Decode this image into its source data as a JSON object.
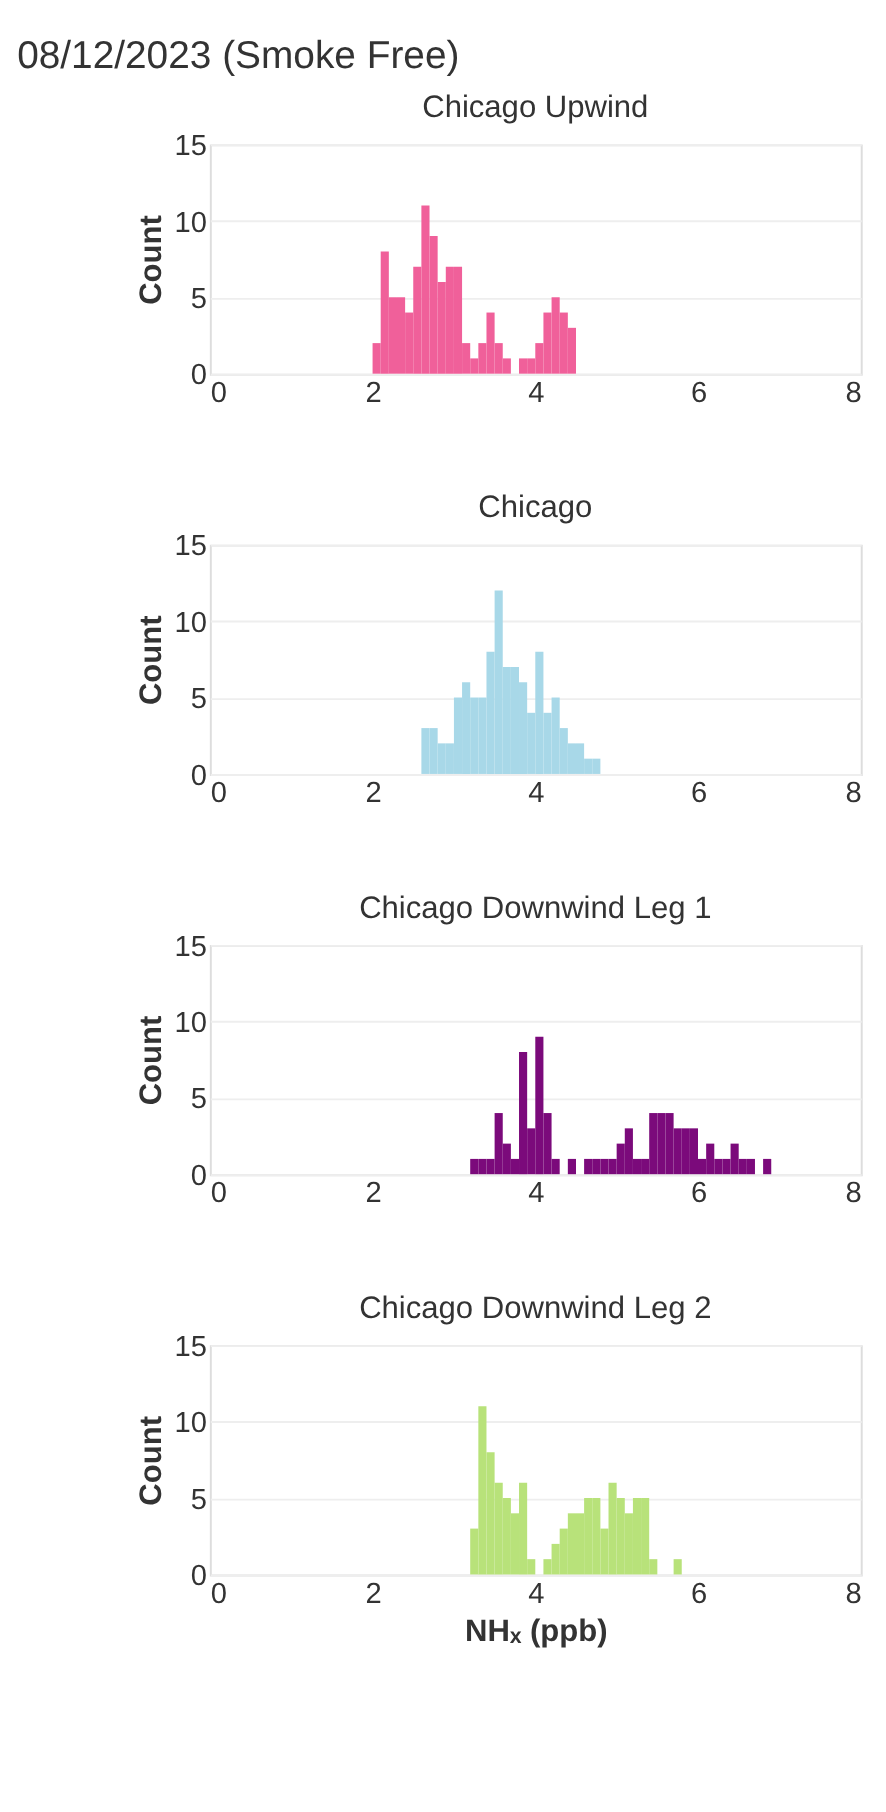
{
  "chart_data": [
    {
      "type": "histogram",
      "title": "Chicago Upwind",
      "ylabel": "Count",
      "annotations": [
        "08/12/2023 (Smoke Free)"
      ],
      "color": "#f0609a",
      "bins": [
        2.0,
        2.1,
        2.2,
        2.3,
        2.4,
        2.5,
        2.6,
        2.7,
        2.8,
        2.9,
        3.0,
        3.1,
        3.2,
        3.3,
        3.4,
        3.5,
        3.6,
        3.7,
        3.8,
        3.9,
        4.0,
        4.1,
        4.2,
        4.3,
        4.4,
        4.5
      ],
      "values": [
        2,
        8,
        5,
        5,
        4,
        7,
        11,
        9,
        6,
        7,
        7,
        2,
        1,
        2,
        4,
        2,
        1,
        0,
        1,
        1,
        2,
        4,
        5,
        4,
        3
      ],
      "xlim": [
        0,
        8
      ],
      "xticks": [
        0,
        2,
        4,
        6,
        8
      ],
      "ylim": [
        0,
        15
      ],
      "yticks": [
        0,
        5,
        10,
        15
      ],
      "grid": "y"
    },
    {
      "type": "histogram",
      "title": "Chicago",
      "ylabel": "Count",
      "color": "#a8d8e8",
      "bins": [
        2.6,
        2.7,
        2.8,
        2.9,
        3.0,
        3.1,
        3.2,
        3.3,
        3.4,
        3.5,
        3.6,
        3.7,
        3.8,
        3.9,
        4.0,
        4.1,
        4.2,
        4.3,
        4.4,
        4.5,
        4.6,
        4.7,
        4.8
      ],
      "values": [
        3,
        3,
        2,
        2,
        5,
        6,
        5,
        5,
        8,
        12,
        7,
        7,
        6,
        4,
        8,
        4,
        5,
        3,
        2,
        2,
        1,
        1
      ],
      "xlim": [
        0,
        8
      ],
      "xticks": [
        0,
        2,
        4,
        6,
        8
      ],
      "ylim": [
        0,
        15
      ],
      "yticks": [
        0,
        5,
        10,
        15
      ],
      "grid": "y"
    },
    {
      "type": "histogram",
      "title": "Chicago Downwind Leg 1",
      "ylabel": "Count",
      "color": "#7b0a7b",
      "bins": [
        3.2,
        3.3,
        3.4,
        3.5,
        3.6,
        3.7,
        3.8,
        3.9,
        4.0,
        4.1,
        4.2,
        4.3,
        4.4,
        4.5,
        4.6,
        4.7,
        4.8,
        4.9,
        5.0,
        5.1,
        5.2,
        5.3,
        5.4,
        5.5,
        5.6,
        5.7,
        5.8,
        5.9,
        6.0,
        6.1,
        6.2,
        6.3,
        6.4,
        6.5,
        6.6,
        6.7,
        6.8,
        6.9
      ],
      "values": [
        1,
        1,
        1,
        4,
        2,
        1,
        8,
        3,
        9,
        4,
        1,
        0,
        1,
        0,
        1,
        1,
        1,
        1,
        2,
        3,
        1,
        1,
        4,
        4,
        4,
        3,
        3,
        3,
        1,
        2,
        1,
        1,
        2,
        1,
        1,
        0,
        1
      ],
      "xlim": [
        0,
        8
      ],
      "xticks": [
        0,
        2,
        4,
        6,
        8
      ],
      "ylim": [
        0,
        15
      ],
      "yticks": [
        0,
        5,
        10,
        15
      ],
      "grid": "y"
    },
    {
      "type": "histogram",
      "title": "Chicago Downwind Leg 2",
      "ylabel": "Count",
      "xlabel": "NHₓ (ppb)",
      "color": "#b8e27a",
      "bins": [
        3.2,
        3.3,
        3.4,
        3.5,
        3.6,
        3.7,
        3.8,
        3.9,
        4.0,
        4.1,
        4.2,
        4.3,
        4.4,
        4.5,
        4.6,
        4.7,
        4.8,
        4.9,
        5.0,
        5.1,
        5.2,
        5.3,
        5.4,
        5.5,
        5.6,
        5.7,
        5.8
      ],
      "values": [
        3,
        11,
        8,
        6,
        5,
        4,
        6,
        1,
        0,
        1,
        2,
        3,
        4,
        4,
        5,
        5,
        3,
        6,
        5,
        4,
        5,
        5,
        1,
        0,
        0,
        1
      ],
      "xlim": [
        0,
        8
      ],
      "xticks": [
        0,
        2,
        4,
        6,
        8
      ],
      "ylim": [
        0,
        15
      ],
      "yticks": [
        0,
        5,
        10,
        15
      ],
      "grid": "y"
    }
  ]
}
